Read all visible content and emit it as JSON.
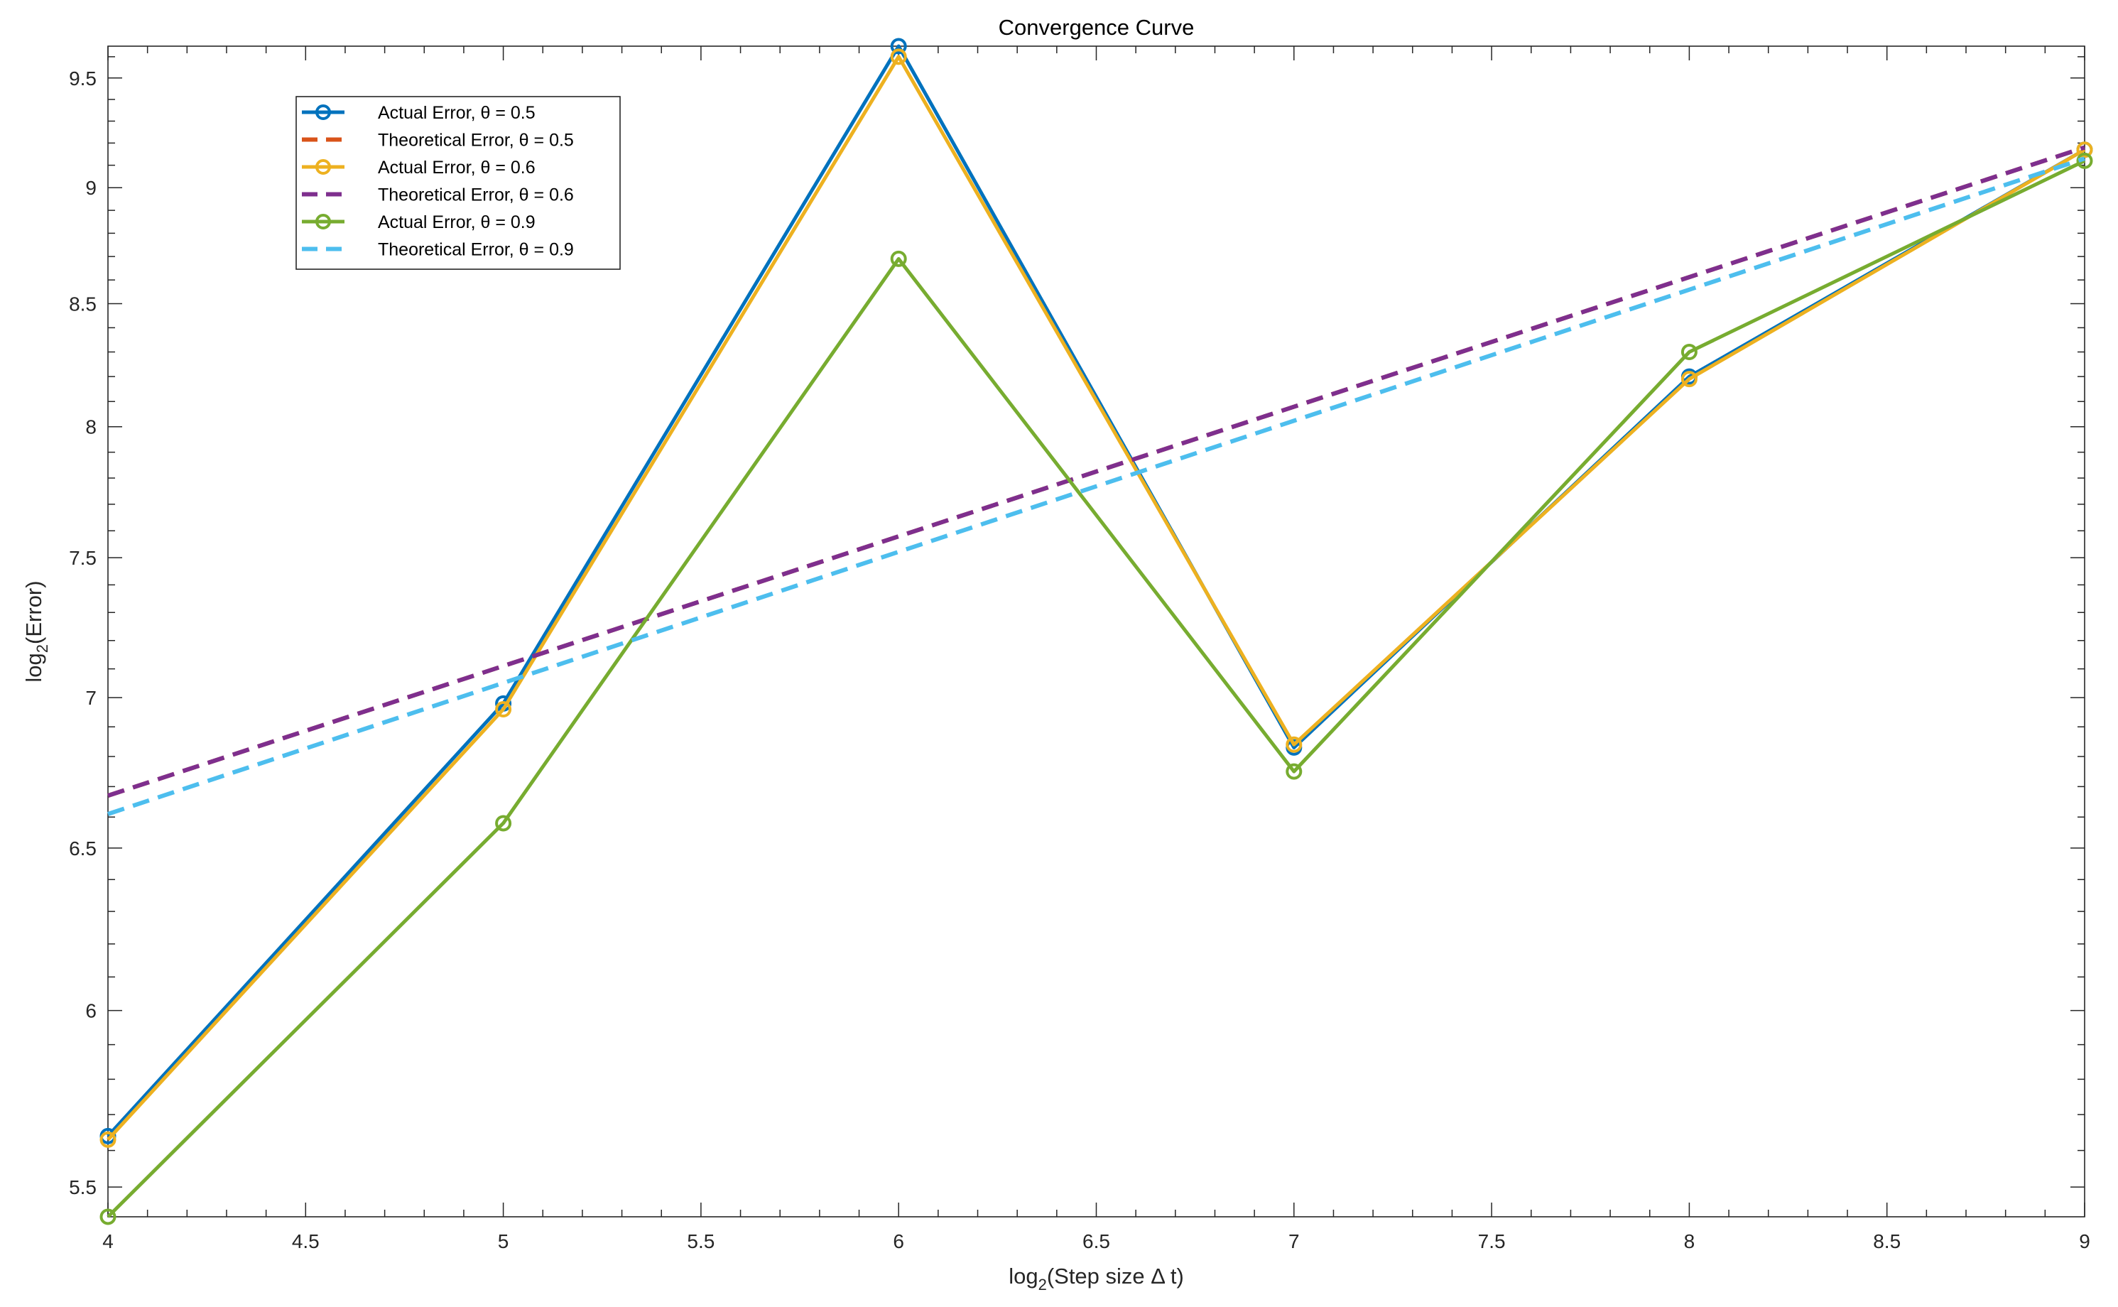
{
  "chart_data": {
    "type": "line",
    "title": "Convergence Curve",
    "xlabel": {
      "prefix": "log",
      "sub": "2",
      "suffix": "(Step size Δ t)"
    },
    "ylabel": {
      "prefix": "log",
      "sub": "2",
      "suffix": "(Error)"
    },
    "xlim": [
      4,
      9
    ],
    "ylim": [
      5.42,
      9.65
    ],
    "y_scale": "log",
    "xticks": [
      4,
      4.5,
      5,
      5.5,
      6,
      6.5,
      7,
      7.5,
      8,
      8.5,
      9
    ],
    "xtick_labels": [
      "4",
      "4.5",
      "5",
      "5.5",
      "6",
      "6.5",
      "7",
      "7.5",
      "8",
      "8.5",
      "9"
    ],
    "yticks": [
      5.5,
      6,
      6.5,
      7,
      7.5,
      8,
      8.5,
      9,
      9.5
    ],
    "ytick_labels": [
      "5.5",
      "6",
      "6.5",
      "7",
      "7.5",
      "8",
      "8.5",
      "9",
      "9.5"
    ],
    "grid": false,
    "box": true,
    "legend_position": "top-left",
    "series": [
      {
        "name": "Actual Error, θ = 0.5",
        "color": "#0072BD",
        "style": "solid-circle",
        "x": [
          4,
          5,
          6,
          7,
          8,
          9
        ],
        "y": [
          5.64,
          6.98,
          9.65,
          6.83,
          8.2,
          9.17
        ]
      },
      {
        "name": "Theoretical Error, θ = 0.5",
        "color": "#D95319",
        "style": "dashed",
        "x": [
          4,
          9
        ],
        "y": [
          6.67,
          9.18
        ]
      },
      {
        "name": "Actual Error, θ = 0.6",
        "color": "#EDB120",
        "style": "solid-circle",
        "x": [
          4,
          5,
          6,
          7,
          8,
          9
        ],
        "y": [
          5.63,
          6.96,
          9.6,
          6.84,
          8.19,
          9.17
        ]
      },
      {
        "name": "Theoretical Error, θ = 0.6",
        "color": "#7E2F8E",
        "style": "dashed",
        "x": [
          4,
          9
        ],
        "y": [
          6.67,
          9.18
        ]
      },
      {
        "name": "Actual Error, θ = 0.9",
        "color": "#77AC30",
        "style": "solid-circle",
        "x": [
          4,
          5,
          6,
          7,
          8,
          9
        ],
        "y": [
          5.42,
          6.58,
          8.69,
          6.75,
          8.3,
          9.12
        ]
      },
      {
        "name": "Theoretical Error, θ = 0.9",
        "color": "#4DBEEE",
        "style": "dashed",
        "x": [
          4,
          9
        ],
        "y": [
          6.61,
          9.13
        ]
      }
    ]
  }
}
